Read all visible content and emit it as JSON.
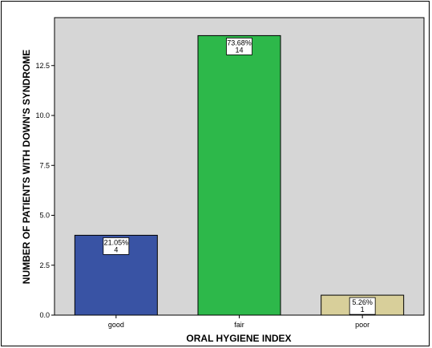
{
  "chart_data": {
    "type": "bar",
    "categories": [
      "good",
      "fair",
      "poor"
    ],
    "values": [
      4,
      14,
      1
    ],
    "percent_labels": [
      "21.05%",
      "73.68%",
      "5.26%"
    ],
    "count_labels": [
      "4",
      "14",
      "1"
    ],
    "bar_colors": [
      "#3953a4",
      "#2db84a",
      "#d8cf9a"
    ],
    "plot_background": "#d6d6d6",
    "xlabel": "ORAL HYGIENE INDEX",
    "ylabel": "NUMBER OF PATIENTS WITH DOWN'S SYNDROME",
    "yticks": [
      "0.0",
      "2.5",
      "5.0",
      "7.5",
      "10.0",
      "12.5"
    ],
    "ylim": [
      0,
      14.9
    ],
    "grid": false
  }
}
